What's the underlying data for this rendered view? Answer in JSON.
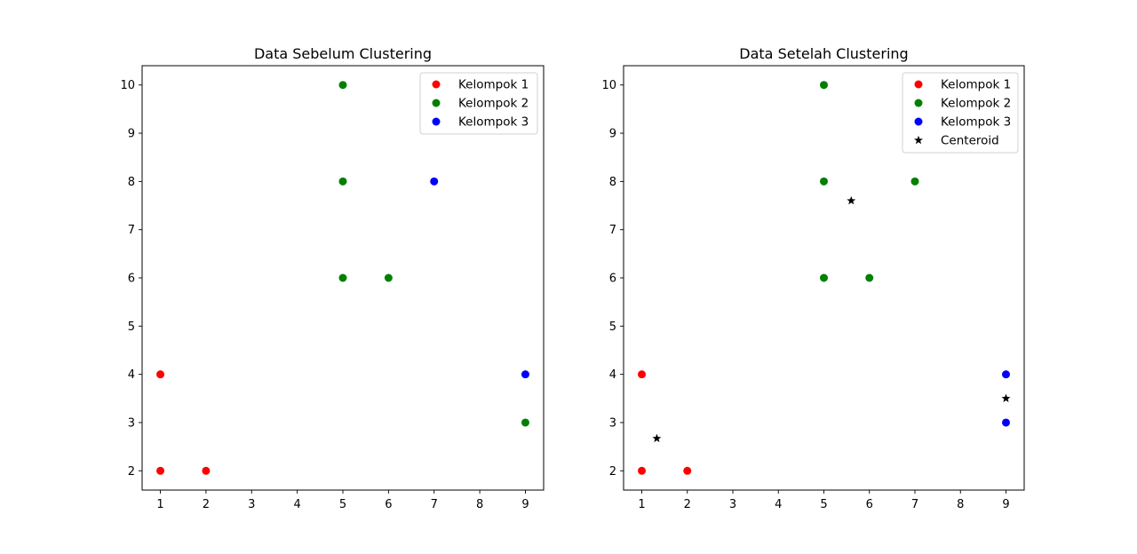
{
  "chart_data": [
    {
      "type": "scatter",
      "title": "Data Sebelum Clustering",
      "xlabel": "",
      "ylabel": "",
      "xlim": [
        0.6,
        9.4
      ],
      "ylim": [
        1.6,
        10.4
      ],
      "xticks": [
        "1",
        "2",
        "3",
        "4",
        "5",
        "6",
        "7",
        "8",
        "9"
      ],
      "yticks": [
        "2",
        "3",
        "4",
        "5",
        "6",
        "7",
        "8",
        "9",
        "10"
      ],
      "grid": false,
      "legend_position": "top-right",
      "series": [
        {
          "name": "Kelompok 1",
          "color": "#ff0000",
          "marker": "circle",
          "points": [
            [
              1,
              2
            ],
            [
              1,
              4
            ],
            [
              2,
              2
            ]
          ]
        },
        {
          "name": "Kelompok 2",
          "color": "#008000",
          "marker": "circle",
          "points": [
            [
              5,
              10
            ],
            [
              5,
              8
            ],
            [
              5,
              6
            ],
            [
              6,
              6
            ],
            [
              9,
              3
            ]
          ]
        },
        {
          "name": "Kelompok 3",
          "color": "#0000ff",
          "marker": "circle",
          "points": [
            [
              7,
              8
            ],
            [
              9,
              4
            ]
          ]
        }
      ]
    },
    {
      "type": "scatter",
      "title": "Data Setelah Clustering",
      "xlabel": "",
      "ylabel": "",
      "xlim": [
        0.6,
        9.4
      ],
      "ylim": [
        1.6,
        10.4
      ],
      "xticks": [
        "1",
        "2",
        "3",
        "4",
        "5",
        "6",
        "7",
        "8",
        "9"
      ],
      "yticks": [
        "2",
        "3",
        "4",
        "5",
        "6",
        "7",
        "8",
        "9",
        "10"
      ],
      "grid": false,
      "legend_position": "top-right",
      "series": [
        {
          "name": "Kelompok 1",
          "color": "#ff0000",
          "marker": "circle",
          "points": [
            [
              1,
              2
            ],
            [
              1,
              4
            ],
            [
              2,
              2
            ]
          ]
        },
        {
          "name": "Kelompok 2",
          "color": "#008000",
          "marker": "circle",
          "points": [
            [
              5,
              10
            ],
            [
              5,
              8
            ],
            [
              5,
              6
            ],
            [
              6,
              6
            ],
            [
              7,
              8
            ]
          ]
        },
        {
          "name": "Kelompok 3",
          "color": "#0000ff",
          "marker": "circle",
          "points": [
            [
              9,
              4
            ],
            [
              9,
              3
            ]
          ]
        },
        {
          "name": "Centeroid",
          "color": "#000000",
          "marker": "star",
          "points": [
            [
              1.33,
              2.67
            ],
            [
              5.6,
              7.6
            ],
            [
              9,
              3.5
            ]
          ]
        }
      ]
    }
  ]
}
